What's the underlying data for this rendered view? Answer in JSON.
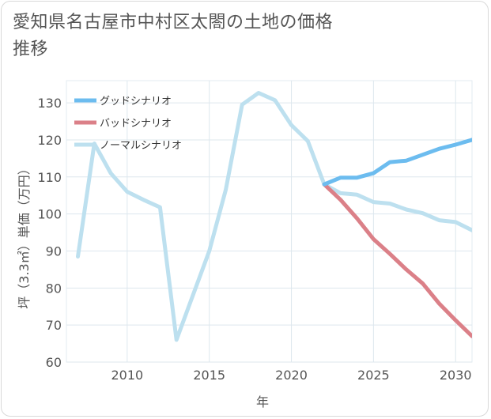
{
  "chart_data": {
    "type": "line",
    "title": "愛知県名古屋市中村区太閤の土地の価格推移",
    "xlabel": "年",
    "ylabel": "坪（3.3㎡）単価（万円）",
    "xlim": [
      2006.3,
      2031.0
    ],
    "ylim": [
      60,
      136
    ],
    "x_ticks": [
      2010,
      2015,
      2020,
      2025,
      2030
    ],
    "y_ticks": [
      60,
      70,
      80,
      90,
      100,
      110,
      120,
      130
    ],
    "grid": true,
    "legend_position": "top-left",
    "series": [
      {
        "name": "グッドシナリオ",
        "color": "#6cbcef",
        "x": [
          2022,
          2023,
          2024,
          2025,
          2026,
          2027,
          2028,
          2029,
          2030,
          2031
        ],
        "values": [
          108,
          109.8,
          109.8,
          111,
          114,
          114.4,
          116,
          117.6,
          118.7,
          120
        ]
      },
      {
        "name": "バッドシナリオ",
        "color": "#db8088",
        "x": [
          2022,
          2023,
          2024,
          2025,
          2026,
          2027,
          2028,
          2029,
          2030,
          2031
        ],
        "values": [
          108,
          103.8,
          98.8,
          93.2,
          89.2,
          85,
          81.2,
          75.8,
          71.3,
          67
        ]
      },
      {
        "name": "ノーマルシナリオ",
        "color": "#bde0ef",
        "x": [
          2007,
          2008,
          2009,
          2010,
          2011,
          2012,
          2013,
          2014,
          2015,
          2016,
          2017,
          2018,
          2019,
          2020,
          2021,
          2022,
          2023,
          2024,
          2025,
          2026,
          2027,
          2028,
          2029,
          2030,
          2031
        ],
        "values": [
          88.5,
          119,
          111,
          106,
          103.8,
          101.8,
          66,
          78,
          90,
          106.5,
          129.5,
          132.7,
          130.7,
          124,
          119.7,
          108,
          105.6,
          105.2,
          103.2,
          102.8,
          101.2,
          100.2,
          98.3,
          97.8,
          95.6
        ]
      }
    ]
  }
}
